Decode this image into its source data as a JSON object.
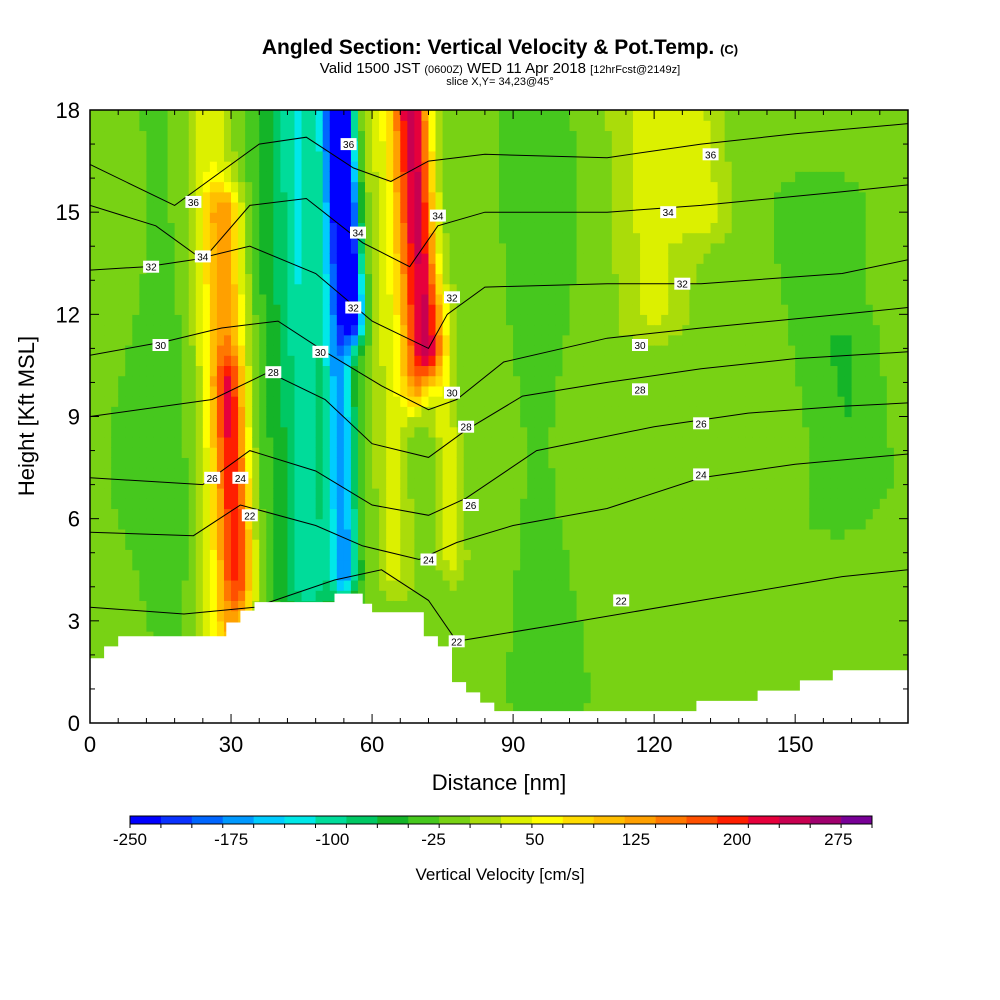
{
  "title": {
    "main": "Angled Section: Vertical Velocity & Pot.Temp.",
    "main_suffix": "(C)",
    "valid_prefix": "Valid 1500 JST",
    "valid_utc": "(0600Z)",
    "valid_date": "WED 11 Apr 2018",
    "forecast": "[12hrFcst@2149z]",
    "slice": "slice X,Y= 34,23@45°"
  },
  "chart_data": {
    "type": "heatmap",
    "xlabel": "Distance [nm]",
    "ylabel": "Height [Kft MSL]",
    "xlim": [
      0,
      174
    ],
    "ylim": [
      0,
      18
    ],
    "x_ticks": [
      0,
      30,
      60,
      90,
      120,
      150
    ],
    "y_ticks": [
      0,
      3,
      6,
      9,
      12,
      15,
      18
    ],
    "colorbar": {
      "label": "Vertical Velocity [cm/s]",
      "min": -250,
      "max": 300,
      "step": 25,
      "tick_labels": [
        -250,
        -175,
        -100,
        -25,
        50,
        125,
        200,
        275
      ],
      "colors": [
        "#0000ff",
        "#0a32ff",
        "#0066ff",
        "#0099ff",
        "#00ccff",
        "#00e8e8",
        "#00dc9a",
        "#00c864",
        "#14b428",
        "#46c81e",
        "#78d214",
        "#aadc0a",
        "#dcf000",
        "#ffff00",
        "#ffdc00",
        "#ffbe00",
        "#ffa000",
        "#ff7800",
        "#ff5000",
        "#ff1e00",
        "#e6003c",
        "#c80050",
        "#a0006e",
        "#780096"
      ]
    },
    "velocity_features": [
      {
        "x": 5,
        "zmin": 2.0,
        "zmax": 18,
        "w": 14,
        "value": -5
      },
      {
        "x": 18,
        "zmin": 2.0,
        "zmax": 18,
        "w": 6,
        "value": -15
      },
      {
        "x": 28,
        "zmin": 2.6,
        "zmax": 18,
        "w": 5,
        "value": 60
      },
      {
        "x": 31,
        "zmin": 3.0,
        "zmax": 15,
        "w": 4,
        "value": 115
      },
      {
        "x": 32,
        "zmin": 4.5,
        "zmax": 10,
        "w": 3,
        "value": 90
      },
      {
        "x": 41,
        "zmin": 4.0,
        "zmax": 18,
        "w": 5,
        "value": -45
      },
      {
        "x": 47,
        "zmin": 4.0,
        "zmax": 18,
        "w": 4,
        "value": -95
      },
      {
        "x": 54,
        "zmin": 4.5,
        "zmax": 18,
        "w": 3,
        "value": -175
      },
      {
        "x": 56,
        "zmin": 12,
        "zmax": 18,
        "w": 2.5,
        "value": -240
      },
      {
        "x": 65,
        "zmin": 4.5,
        "zmax": 18,
        "w": 4,
        "value": 50
      },
      {
        "x": 69,
        "zmin": 10,
        "zmax": 18,
        "w": 3,
        "value": 140
      },
      {
        "x": 72,
        "zmin": 11,
        "zmax": 18,
        "w": 3,
        "value": 200
      },
      {
        "x": 77,
        "zmin": 5,
        "zmax": 12,
        "w": 3,
        "value": 60
      },
      {
        "x": 97,
        "zmin": 1,
        "zmax": 18,
        "w": 8,
        "value": -15
      },
      {
        "x": 120,
        "zmin": 12,
        "zmax": 18,
        "w": 8,
        "value": 45
      },
      {
        "x": 130,
        "zmin": 15,
        "zmax": 18,
        "w": 6,
        "value": 50
      },
      {
        "x": 158,
        "zmin": 6,
        "zmax": 15,
        "w": 10,
        "value": -15
      },
      {
        "x": 163,
        "zmin": 7.5,
        "zmax": 11,
        "w": 6,
        "value": -25
      }
    ],
    "terrain": [
      [
        0,
        1.9
      ],
      [
        3,
        1.9
      ],
      [
        3,
        2.25
      ],
      [
        6,
        2.25
      ],
      [
        6,
        2.55
      ],
      [
        29,
        2.55
      ],
      [
        29,
        2.95
      ],
      [
        32,
        2.95
      ],
      [
        32,
        3.3
      ],
      [
        35,
        3.3
      ],
      [
        35,
        3.55
      ],
      [
        52,
        3.55
      ],
      [
        52,
        3.8
      ],
      [
        58,
        3.8
      ],
      [
        58,
        3.5
      ],
      [
        60,
        3.5
      ],
      [
        60,
        3.25
      ],
      [
        71,
        3.25
      ],
      [
        71,
        2.55
      ],
      [
        74,
        2.55
      ],
      [
        74,
        2.25
      ],
      [
        77,
        2.25
      ],
      [
        77,
        1.2
      ],
      [
        80,
        1.2
      ],
      [
        80,
        0.9
      ],
      [
        83,
        0.9
      ],
      [
        83,
        0.6
      ],
      [
        86,
        0.6
      ],
      [
        86,
        0.35
      ],
      [
        129,
        0.35
      ],
      [
        129,
        0.65
      ],
      [
        142,
        0.65
      ],
      [
        142,
        0.95
      ],
      [
        151,
        0.95
      ],
      [
        151,
        1.25
      ],
      [
        158,
        1.25
      ],
      [
        158,
        1.55
      ],
      [
        174,
        1.55
      ]
    ],
    "isentropes": [
      {
        "level": 22,
        "points": [
          [
            0,
            3.4
          ],
          [
            20,
            3.2
          ],
          [
            35,
            3.4
          ],
          [
            52,
            4.2
          ],
          [
            62,
            4.5
          ],
          [
            72,
            3.6
          ],
          [
            78,
            2.4
          ],
          [
            100,
            2.9
          ],
          [
            130,
            3.6
          ],
          [
            160,
            4.3
          ],
          [
            174,
            4.5
          ]
        ]
      },
      {
        "level": 24,
        "points": [
          [
            0,
            5.6
          ],
          [
            22,
            5.5
          ],
          [
            32,
            6.4
          ],
          [
            48,
            5.8
          ],
          [
            58,
            5.2
          ],
          [
            70,
            4.8
          ],
          [
            78,
            5.3
          ],
          [
            90,
            5.8
          ],
          [
            110,
            6.3
          ],
          [
            130,
            7.2
          ],
          [
            150,
            7.6
          ],
          [
            174,
            7.9
          ]
        ]
      },
      {
        "level": 26,
        "points": [
          [
            0,
            7.2
          ],
          [
            24,
            7.0
          ],
          [
            34,
            8.0
          ],
          [
            48,
            7.4
          ],
          [
            60,
            6.4
          ],
          [
            72,
            6.1
          ],
          [
            80,
            6.6
          ],
          [
            95,
            8.0
          ],
          [
            120,
            8.7
          ],
          [
            140,
            9.1
          ],
          [
            160,
            9.3
          ],
          [
            174,
            9.4
          ]
        ]
      },
      {
        "level": 28,
        "points": [
          [
            0,
            9.0
          ],
          [
            26,
            9.5
          ],
          [
            38,
            10.3
          ],
          [
            50,
            9.5
          ],
          [
            60,
            8.2
          ],
          [
            72,
            7.8
          ],
          [
            80,
            8.6
          ],
          [
            92,
            9.6
          ],
          [
            110,
            10.0
          ],
          [
            130,
            10.4
          ],
          [
            150,
            10.7
          ],
          [
            174,
            10.9
          ]
        ]
      },
      {
        "level": 30,
        "points": [
          [
            0,
            10.8
          ],
          [
            16,
            11.2
          ],
          [
            28,
            11.6
          ],
          [
            40,
            11.8
          ],
          [
            50,
            10.9
          ],
          [
            62,
            9.9
          ],
          [
            72,
            9.2
          ],
          [
            78,
            9.5
          ],
          [
            88,
            10.6
          ],
          [
            110,
            11.3
          ],
          [
            130,
            11.6
          ],
          [
            160,
            12.0
          ],
          [
            174,
            12.2
          ]
        ]
      },
      {
        "level": 32,
        "points": [
          [
            0,
            13.3
          ],
          [
            12,
            13.4
          ],
          [
            22,
            13.6
          ],
          [
            34,
            14.0
          ],
          [
            48,
            13.2
          ],
          [
            60,
            11.8
          ],
          [
            72,
            11.0
          ],
          [
            76,
            12.0
          ],
          [
            84,
            12.8
          ],
          [
            110,
            12.9
          ],
          [
            130,
            12.9
          ],
          [
            160,
            13.2
          ],
          [
            174,
            13.6
          ]
        ]
      },
      {
        "level": 34,
        "points": [
          [
            0,
            15.2
          ],
          [
            14,
            14.6
          ],
          [
            24,
            13.6
          ],
          [
            34,
            15.2
          ],
          [
            46,
            15.4
          ],
          [
            58,
            14.1
          ],
          [
            68,
            13.4
          ],
          [
            74,
            14.6
          ],
          [
            84,
            15.0
          ],
          [
            110,
            15.0
          ],
          [
            130,
            15.2
          ],
          [
            160,
            15.6
          ],
          [
            174,
            15.8
          ]
        ]
      },
      {
        "level": 36,
        "points": [
          [
            0,
            16.4
          ],
          [
            18,
            15.2
          ],
          [
            26,
            16.0
          ],
          [
            36,
            17.0
          ],
          [
            46,
            17.2
          ],
          [
            56,
            16.3
          ],
          [
            64,
            15.9
          ],
          [
            72,
            16.5
          ],
          [
            84,
            16.7
          ],
          [
            110,
            16.6
          ],
          [
            130,
            17.0
          ],
          [
            150,
            17.3
          ],
          [
            174,
            17.6
          ]
        ]
      }
    ],
    "contour_labels": [
      {
        "text": "36",
        "x": 22,
        "y": 15.3
      },
      {
        "text": "34",
        "x": 24,
        "y": 13.7
      },
      {
        "text": "32",
        "x": 13,
        "y": 13.4
      },
      {
        "text": "30",
        "x": 15,
        "y": 11.1
      },
      {
        "text": "28",
        "x": 39,
        "y": 10.3
      },
      {
        "text": "30",
        "x": 49,
        "y": 10.9
      },
      {
        "text": "26",
        "x": 26,
        "y": 7.2
      },
      {
        "text": "24",
        "x": 32,
        "y": 7.2
      },
      {
        "text": "22",
        "x": 34,
        "y": 6.1
      },
      {
        "text": "36",
        "x": 55,
        "y": 17.0
      },
      {
        "text": "34",
        "x": 57,
        "y": 14.4
      },
      {
        "text": "32",
        "x": 56,
        "y": 12.2
      },
      {
        "text": "34",
        "x": 74,
        "y": 14.9
      },
      {
        "text": "32",
        "x": 77,
        "y": 12.5
      },
      {
        "text": "30",
        "x": 77,
        "y": 9.7
      },
      {
        "text": "28",
        "x": 80,
        "y": 8.7
      },
      {
        "text": "26",
        "x": 81,
        "y": 6.4
      },
      {
        "text": "24",
        "x": 72,
        "y": 4.8
      },
      {
        "text": "22",
        "x": 78,
        "y": 2.4
      },
      {
        "text": "36",
        "x": 132,
        "y": 16.7
      },
      {
        "text": "34",
        "x": 123,
        "y": 15.0
      },
      {
        "text": "32",
        "x": 126,
        "y": 12.9
      },
      {
        "text": "30",
        "x": 117,
        "y": 11.1
      },
      {
        "text": "28",
        "x": 117,
        "y": 9.8
      },
      {
        "text": "26",
        "x": 130,
        "y": 8.8
      },
      {
        "text": "24",
        "x": 130,
        "y": 7.3
      },
      {
        "text": "22",
        "x": 113,
        "y": 3.6
      }
    ]
  }
}
